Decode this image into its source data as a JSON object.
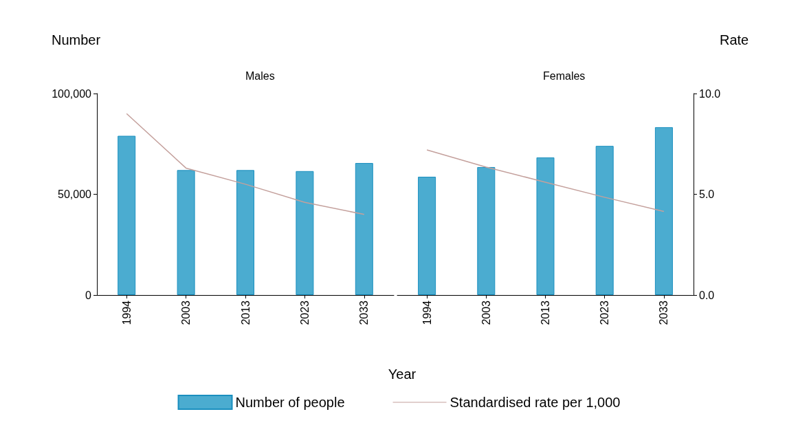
{
  "chart_data": [
    {
      "type": "bar",
      "title": "Males",
      "ylabel": "Number",
      "xlabel": "Year",
      "categories": [
        "1994",
        "2003",
        "2013",
        "2023",
        "2033"
      ],
      "series": [
        {
          "name": "Number of people",
          "color": "#4bacd0",
          "values": [
            79000,
            62000,
            62000,
            61500,
            65500
          ]
        },
        {
          "name": "Standardised rate per 1,000",
          "type": "line",
          "axis": "y2",
          "color": "#c4a09c",
          "values": [
            9.0,
            6.3,
            5.5,
            4.6,
            4.0
          ]
        }
      ],
      "ylim": [
        0,
        100000
      ],
      "yticks": [
        0,
        {
          "value": 50000,
          "label": "50,000"
        },
        {
          "value": 100000,
          "label": "100,000"
        }
      ],
      "y2lim": [
        0,
        10
      ],
      "legend": "bottom",
      "marker": "none",
      "grid": false
    },
    {
      "type": "bar",
      "title": "Females",
      "y2label": "Rate",
      "categories": [
        "1994",
        "2003",
        "2013",
        "2023",
        "2033"
      ],
      "series": [
        {
          "color": "#4bacd0",
          "values": [
            58700,
            63500,
            68300,
            74000,
            83300
          ]
        },
        {
          "type": "line",
          "axis": "y2",
          "color": "#c4a09c",
          "values": [
            7.2,
            6.35,
            5.6,
            4.85,
            4.15
          ]
        }
      ],
      "ylim": [
        0,
        100000
      ],
      "y2lim": [
        0,
        10
      ],
      "y2ticks": [
        {
          "value": 0,
          "label": "0.0"
        },
        {
          "value": 5,
          "label": "5.0"
        },
        {
          "value": 10,
          "label": "10.0"
        }
      ],
      "marker": "none",
      "grid": false
    }
  ]
}
